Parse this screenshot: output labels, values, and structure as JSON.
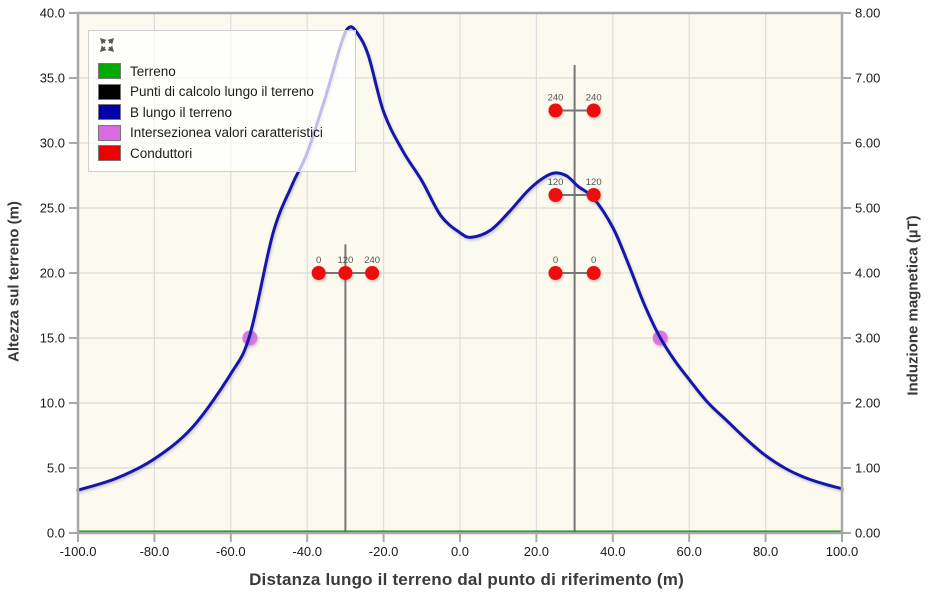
{
  "axes": {
    "x": {
      "label": "Distanza lungo il terreno dal punto di riferimento (m)",
      "min": -100,
      "max": 100,
      "tick_values": [
        -100,
        -80,
        -60,
        -40,
        -20,
        0,
        20,
        40,
        60,
        80,
        100
      ],
      "tick_labels": [
        "-100.0",
        "-80.0",
        "-60.0",
        "-40.0",
        "-20.0",
        "0.0",
        "20.0",
        "40.0",
        "60.0",
        "80.0",
        "100.0"
      ]
    },
    "y_left": {
      "label": "Altezza sul terreno (m)",
      "min": 0,
      "max": 40,
      "tick_values": [
        0,
        5,
        10,
        15,
        20,
        25,
        30,
        35,
        40
      ],
      "tick_labels": [
        "0.0",
        "5.0",
        "10.0",
        "15.0",
        "20.0",
        "25.0",
        "30.0",
        "35.0",
        "40.0"
      ]
    },
    "y_right": {
      "label": "Induzione magnetica (µT)",
      "min": 0,
      "max": 8,
      "tick_values": [
        0,
        1,
        2,
        3,
        4,
        5,
        6,
        7,
        8
      ],
      "tick_labels": [
        "0.00",
        "1.00",
        "2.00",
        "3.00",
        "4.00",
        "5.00",
        "6.00",
        "7.00",
        "8.00"
      ]
    }
  },
  "legend": {
    "expand_icon": "expand-arrows-icon",
    "items": [
      {
        "label": "Terreno",
        "color": "#00aa00"
      },
      {
        "label": "Punti di calcolo lungo il terreno",
        "color": "#000000"
      },
      {
        "label": "B lungo il terreno",
        "color": "#0000aa"
      },
      {
        "label": "Intersezionea valori caratteristici",
        "color": "#d96ae0"
      },
      {
        "label": "Conduttori",
        "color": "#ee0000"
      }
    ]
  },
  "chart_data": {
    "type": "line",
    "xlabel": "Distanza lungo il terreno dal punto di riferimento (m)",
    "ylabel_left": "Altezza sul terreno (m)",
    "ylabel_right": "Induzione magnetica (µT)",
    "x_range": [
      -100,
      100
    ],
    "y_left_range_m": [
      0,
      40
    ],
    "y_right_range_uT": [
      0,
      8
    ],
    "grid": true,
    "legend_position": "top-left",
    "plot_background": "#fcf9ef",
    "series": [
      {
        "name": "B lungo il terreno",
        "axis": "right",
        "color": "#1512ad",
        "width": 3,
        "x": [
          -100,
          -90,
          -80,
          -70,
          -60,
          -55,
          -49,
          -44,
          -40,
          -35,
          -31,
          -29,
          -27,
          -24,
          -20,
          -15,
          -10,
          -5,
          0,
          3,
          8,
          13,
          18,
          22,
          25,
          28,
          31,
          35,
          40,
          44,
          48,
          52,
          56,
          60,
          65,
          70,
          75,
          80,
          85,
          90,
          95,
          100
        ],
        "y_uT": [
          0.66,
          0.84,
          1.14,
          1.63,
          2.45,
          3.05,
          4.6,
          5.35,
          5.85,
          6.75,
          7.55,
          7.78,
          7.7,
          7.35,
          6.48,
          5.88,
          5.42,
          4.88,
          4.62,
          4.55,
          4.66,
          4.95,
          5.28,
          5.47,
          5.54,
          5.49,
          5.33,
          5.15,
          4.7,
          4.15,
          3.55,
          3.05,
          2.67,
          2.36,
          2.0,
          1.72,
          1.44,
          1.19,
          1.0,
          0.86,
          0.76,
          0.68
        ]
      },
      {
        "name": "Terreno",
        "axis": "left",
        "color": "#009a00",
        "width": 2,
        "constant_y_m": 0
      },
      {
        "name": "Punti di calcolo lungo il terreno",
        "axis": "left",
        "color": "#111111",
        "width": 2.5,
        "constant_y_m": 1.5
      }
    ],
    "intersections": {
      "name": "Intersezionea valori caratteristici",
      "color": "#d96ae0",
      "value_uT": 3.0,
      "points": [
        {
          "x": -55,
          "y_m": 15
        },
        {
          "x": 52.4,
          "y_m": 15
        }
      ]
    },
    "conductors": {
      "name": "Conduttori",
      "color": "#ee0d0d",
      "points": [
        {
          "x": -37,
          "y_m": 20,
          "label": "0"
        },
        {
          "x": -30,
          "y_m": 20,
          "label": "120"
        },
        {
          "x": -23,
          "y_m": 20,
          "label": "240"
        },
        {
          "x": 25,
          "y_m": 32.5,
          "label": "240"
        },
        {
          "x": 35,
          "y_m": 32.5,
          "label": "240"
        },
        {
          "x": 25,
          "y_m": 26,
          "label": "120"
        },
        {
          "x": 35,
          "y_m": 26,
          "label": "120"
        },
        {
          "x": 25,
          "y_m": 20,
          "label": "0"
        },
        {
          "x": 35,
          "y_m": 20,
          "label": "0"
        }
      ]
    },
    "structures": [
      {
        "name": "left-tower",
        "x": -30,
        "top_m": 22.2,
        "crossarms": [
          {
            "y_m": 20,
            "x1": -37,
            "x2": -23
          }
        ]
      },
      {
        "name": "right-tower",
        "x": 30,
        "top_m": 36,
        "crossarms": [
          {
            "y_m": 32.5,
            "x1": 25,
            "x2": 35
          },
          {
            "y_m": 26,
            "x1": 25,
            "x2": 35
          },
          {
            "y_m": 20,
            "x1": 25,
            "x2": 35
          }
        ]
      }
    ],
    "styles": {
      "grid_color": "#dcdcdc",
      "frame_color": "#a8a8a8",
      "tower_color": "#777777",
      "marker_radius": 7
    }
  }
}
